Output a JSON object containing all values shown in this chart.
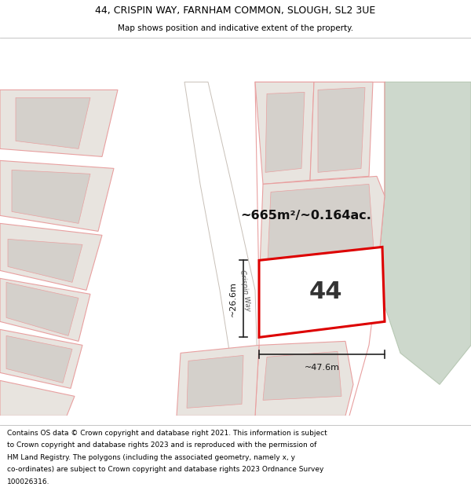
{
  "title_line1": "44, CRISPIN WAY, FARNHAM COMMON, SLOUGH, SL2 3UE",
  "title_line2": "Map shows position and indicative extent of the property.",
  "footer_lines": [
    "Contains OS data © Crown copyright and database right 2021. This information is subject",
    "to Crown copyright and database rights 2023 and is reproduced with the permission of",
    "HM Land Registry. The polygons (including the associated geometry, namely x, y",
    "co-ordinates) are subject to Crown copyright and database rights 2023 Ordnance Survey",
    "100026316."
  ],
  "area_label": "~665m²/~0.164ac.",
  "property_number": "44",
  "dim_width": "~47.6m",
  "dim_height": "~26.6m",
  "road_label": "Crispin Way",
  "map_bg": "#f2eeea",
  "green_color": "#cdd8cc",
  "plot_fill": "#ffffff",
  "plot_edge": "#dd0000",
  "neighbor_fill": "#e8e4df",
  "neighbor_edge": "#e8a0a0",
  "building_fill": "#d4d0cb",
  "building_edge": "#d0908888",
  "road_fill": "#ffffff",
  "road_edge": "#c8c0b8"
}
